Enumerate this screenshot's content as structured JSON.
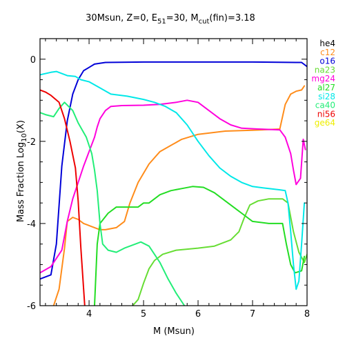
{
  "chart_data": {
    "type": "line",
    "title": {
      "prefix": "30Msun, Z=0, E",
      "e_sub": "51",
      "mid": "=30, M",
      "m_sub": "cut",
      "suffix": "(fin)=3.18"
    },
    "xlabel": "M (Msun)",
    "ylabel": {
      "prefix": "Mass Fraction Log",
      "sub": "10",
      "suffix": "(X)"
    },
    "xlim": [
      3.1,
      8.0
    ],
    "ylim": [
      -6,
      0.5
    ],
    "x_ticks": [
      4,
      5,
      6,
      7,
      8
    ],
    "y_ticks": [
      0,
      -2,
      -4,
      -6
    ],
    "grid": false,
    "legend_position": "right",
    "series": [
      {
        "name": "he4",
        "color": "#000000",
        "points": []
      },
      {
        "name": "c12",
        "color": "#ff8c1a",
        "points": [
          [
            3.35,
            -6.0
          ],
          [
            3.45,
            -5.6
          ],
          [
            3.55,
            -4.6
          ],
          [
            3.6,
            -3.95
          ],
          [
            3.7,
            -3.85
          ],
          [
            3.8,
            -3.9
          ],
          [
            3.9,
            -4.0
          ],
          [
            4.0,
            -4.05
          ],
          [
            4.1,
            -4.1
          ],
          [
            4.2,
            -4.15
          ],
          [
            4.3,
            -4.15
          ],
          [
            4.5,
            -4.1
          ],
          [
            4.65,
            -3.95
          ],
          [
            4.75,
            -3.5
          ],
          [
            4.9,
            -3.0
          ],
          [
            5.1,
            -2.55
          ],
          [
            5.3,
            -2.25
          ],
          [
            5.5,
            -2.1
          ],
          [
            5.7,
            -1.95
          ],
          [
            6.0,
            -1.83
          ],
          [
            6.5,
            -1.75
          ],
          [
            7.0,
            -1.73
          ],
          [
            7.5,
            -1.7
          ],
          [
            7.6,
            -1.1
          ],
          [
            7.7,
            -0.85
          ],
          [
            7.8,
            -0.78
          ],
          [
            7.9,
            -0.75
          ],
          [
            7.95,
            -0.65
          ]
        ]
      },
      {
        "name": "o16",
        "color": "#0000d8",
        "points": [
          [
            3.1,
            -5.35
          ],
          [
            3.3,
            -5.25
          ],
          [
            3.4,
            -4.5
          ],
          [
            3.5,
            -2.6
          ],
          [
            3.6,
            -1.5
          ],
          [
            3.7,
            -0.85
          ],
          [
            3.8,
            -0.5
          ],
          [
            3.9,
            -0.28
          ],
          [
            4.0,
            -0.2
          ],
          [
            4.1,
            -0.12
          ],
          [
            4.3,
            -0.08
          ],
          [
            5.0,
            -0.07
          ],
          [
            6.0,
            -0.07
          ],
          [
            7.0,
            -0.07
          ],
          [
            7.8,
            -0.08
          ],
          [
            7.9,
            -0.08
          ],
          [
            8.0,
            -0.18
          ]
        ]
      },
      {
        "name": "na23",
        "color": "#66dd33",
        "points": [
          [
            4.8,
            -6.0
          ],
          [
            4.9,
            -5.85
          ],
          [
            5.0,
            -5.45
          ],
          [
            5.1,
            -5.1
          ],
          [
            5.2,
            -4.9
          ],
          [
            5.35,
            -4.75
          ],
          [
            5.6,
            -4.65
          ],
          [
            6.0,
            -4.6
          ],
          [
            6.3,
            -4.55
          ],
          [
            6.6,
            -4.4
          ],
          [
            6.75,
            -4.2
          ],
          [
            6.85,
            -3.85
          ],
          [
            6.95,
            -3.55
          ],
          [
            7.1,
            -3.45
          ],
          [
            7.3,
            -3.4
          ],
          [
            7.55,
            -3.4
          ],
          [
            7.65,
            -3.5
          ],
          [
            7.75,
            -4.2
          ],
          [
            7.85,
            -4.7
          ],
          [
            7.95,
            -4.95
          ],
          [
            8.0,
            -4.75
          ]
        ]
      },
      {
        "name": "mg24",
        "color": "#ff00dd",
        "points": [
          [
            3.1,
            -5.2
          ],
          [
            3.3,
            -5.05
          ],
          [
            3.5,
            -4.65
          ],
          [
            3.6,
            -3.95
          ],
          [
            3.7,
            -3.4
          ],
          [
            3.8,
            -3.0
          ],
          [
            3.9,
            -2.6
          ],
          [
            4.0,
            -2.25
          ],
          [
            4.1,
            -1.9
          ],
          [
            4.15,
            -1.65
          ],
          [
            4.2,
            -1.45
          ],
          [
            4.3,
            -1.25
          ],
          [
            4.4,
            -1.15
          ],
          [
            4.6,
            -1.13
          ],
          [
            5.0,
            -1.12
          ],
          [
            5.3,
            -1.1
          ],
          [
            5.6,
            -1.05
          ],
          [
            5.8,
            -1.0
          ],
          [
            6.0,
            -1.05
          ],
          [
            6.2,
            -1.25
          ],
          [
            6.4,
            -1.45
          ],
          [
            6.6,
            -1.6
          ],
          [
            6.8,
            -1.68
          ],
          [
            7.1,
            -1.7
          ],
          [
            7.5,
            -1.72
          ],
          [
            7.6,
            -1.9
          ],
          [
            7.7,
            -2.3
          ],
          [
            7.75,
            -2.7
          ],
          [
            7.8,
            -3.05
          ],
          [
            7.88,
            -2.9
          ],
          [
            7.93,
            -1.95
          ],
          [
            7.97,
            -2.2
          ]
        ]
      },
      {
        "name": "al27",
        "color": "#22dd22",
        "points": [
          [
            4.1,
            -6.0
          ],
          [
            4.15,
            -4.5
          ],
          [
            4.2,
            -4.0
          ],
          [
            4.35,
            -3.75
          ],
          [
            4.5,
            -3.6
          ],
          [
            4.7,
            -3.6
          ],
          [
            4.9,
            -3.6
          ],
          [
            5.0,
            -3.5
          ],
          [
            5.1,
            -3.5
          ],
          [
            5.3,
            -3.3
          ],
          [
            5.5,
            -3.2
          ],
          [
            5.7,
            -3.15
          ],
          [
            5.9,
            -3.1
          ],
          [
            6.1,
            -3.12
          ],
          [
            6.3,
            -3.25
          ],
          [
            6.5,
            -3.45
          ],
          [
            6.7,
            -3.65
          ],
          [
            6.85,
            -3.8
          ],
          [
            7.0,
            -3.95
          ],
          [
            7.3,
            -4.0
          ],
          [
            7.55,
            -4.0
          ],
          [
            7.62,
            -4.5
          ],
          [
            7.7,
            -5.0
          ],
          [
            7.78,
            -5.2
          ],
          [
            7.9,
            -5.15
          ],
          [
            7.95,
            -4.8
          ]
        ]
      },
      {
        "name": "si28",
        "color": "#00e8e8",
        "points": [
          [
            3.1,
            -0.38
          ],
          [
            3.3,
            -0.32
          ],
          [
            3.4,
            -0.3
          ],
          [
            3.5,
            -0.35
          ],
          [
            3.6,
            -0.4
          ],
          [
            3.75,
            -0.42
          ],
          [
            3.85,
            -0.5
          ],
          [
            4.0,
            -0.55
          ],
          [
            4.2,
            -0.7
          ],
          [
            4.4,
            -0.85
          ],
          [
            4.7,
            -0.9
          ],
          [
            5.0,
            -0.98
          ],
          [
            5.2,
            -1.05
          ],
          [
            5.4,
            -1.15
          ],
          [
            5.6,
            -1.3
          ],
          [
            5.8,
            -1.6
          ],
          [
            6.0,
            -2.0
          ],
          [
            6.2,
            -2.35
          ],
          [
            6.4,
            -2.65
          ],
          [
            6.6,
            -2.85
          ],
          [
            6.8,
            -3.0
          ],
          [
            7.0,
            -3.1
          ],
          [
            7.3,
            -3.15
          ],
          [
            7.5,
            -3.18
          ],
          [
            7.6,
            -3.2
          ],
          [
            7.65,
            -3.5
          ],
          [
            7.7,
            -4.2
          ],
          [
            7.75,
            -5.0
          ],
          [
            7.8,
            -5.6
          ],
          [
            7.85,
            -5.4
          ],
          [
            7.9,
            -4.5
          ],
          [
            7.95,
            -3.5
          ]
        ]
      },
      {
        "name": "ca40",
        "color": "#22ee77",
        "points": [
          [
            3.1,
            -1.3
          ],
          [
            3.2,
            -1.35
          ],
          [
            3.35,
            -1.4
          ],
          [
            3.45,
            -1.2
          ],
          [
            3.55,
            -1.05
          ],
          [
            3.7,
            -1.25
          ],
          [
            3.8,
            -1.55
          ],
          [
            3.95,
            -1.9
          ],
          [
            4.05,
            -2.3
          ],
          [
            4.1,
            -2.7
          ],
          [
            4.15,
            -3.2
          ],
          [
            4.2,
            -4.0
          ],
          [
            4.25,
            -4.5
          ],
          [
            4.35,
            -4.65
          ],
          [
            4.5,
            -4.7
          ],
          [
            4.65,
            -4.6
          ],
          [
            4.85,
            -4.5
          ],
          [
            4.95,
            -4.45
          ],
          [
            5.1,
            -4.55
          ],
          [
            5.2,
            -4.75
          ],
          [
            5.3,
            -4.95
          ],
          [
            5.45,
            -5.35
          ],
          [
            5.6,
            -5.7
          ],
          [
            5.75,
            -6.0
          ]
        ]
      },
      {
        "name": "ni56",
        "color": "#ee0000",
        "points": [
          [
            3.1,
            -0.75
          ],
          [
            3.2,
            -0.8
          ],
          [
            3.3,
            -0.88
          ],
          [
            3.45,
            -1.05
          ],
          [
            3.55,
            -1.45
          ],
          [
            3.65,
            -2.0
          ],
          [
            3.75,
            -2.65
          ],
          [
            3.8,
            -3.45
          ],
          [
            3.85,
            -4.6
          ],
          [
            3.9,
            -5.6
          ],
          [
            3.92,
            -6.0
          ]
        ]
      },
      {
        "name": "ge64",
        "color": "#eeee00",
        "points": []
      }
    ]
  }
}
